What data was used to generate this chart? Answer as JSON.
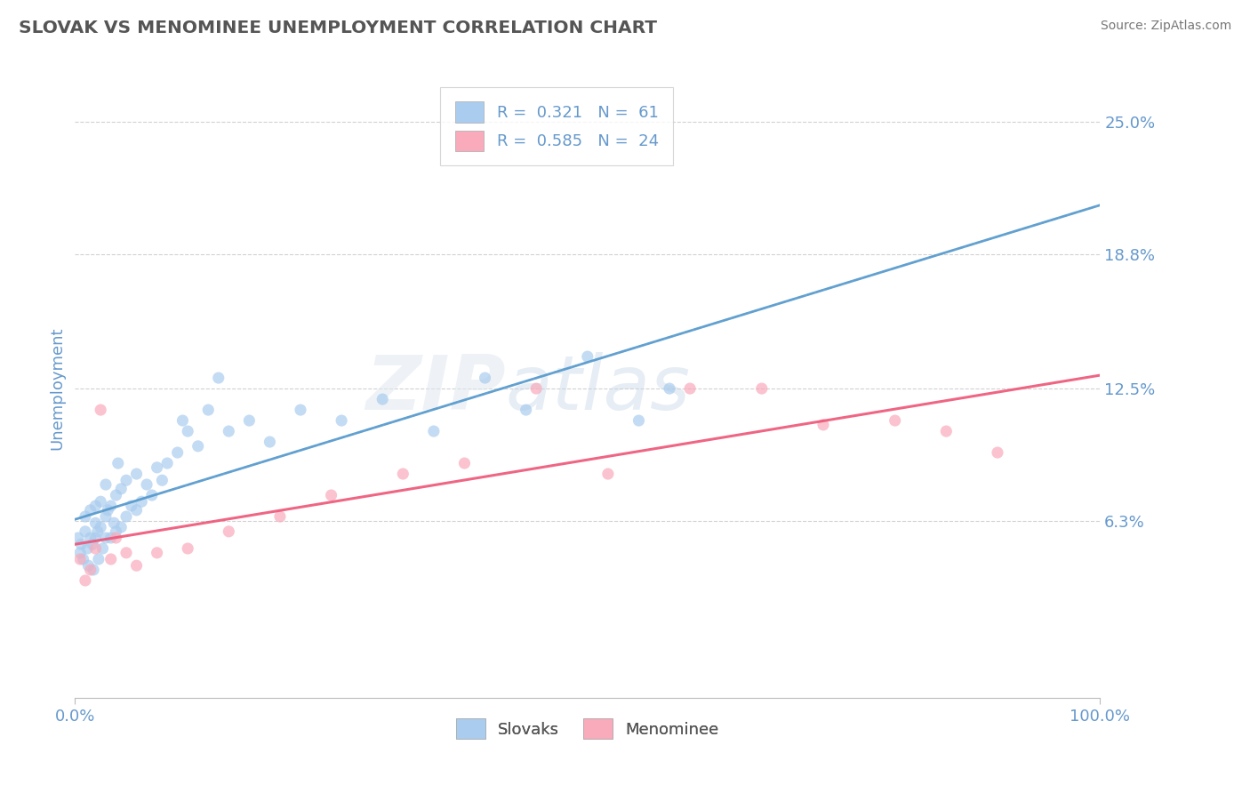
{
  "title": "SLOVAK VS MENOMINEE UNEMPLOYMENT CORRELATION CHART",
  "source_text": "Source: ZipAtlas.com",
  "ylabel": "Unemployment",
  "watermark": "ZIPatlas",
  "xlim": [
    0,
    100
  ],
  "ylim": [
    -2,
    27
  ],
  "plot_ylim": [
    -2,
    27
  ],
  "ytick_vals": [
    6.3,
    12.5,
    18.8,
    25.0
  ],
  "ytick_labels": [
    "6.3%",
    "12.5%",
    "18.8%",
    "25.0%"
  ],
  "xtick_labels": [
    "0.0%",
    "100.0%"
  ],
  "background_color": "#ffffff",
  "grid_color": "#cccccc",
  "title_color": "#555555",
  "tick_color": "#6699cc",
  "source_color": "#777777",
  "slovaks_dot_color": "#aaccee",
  "slovaks_line_color": "#5599cc",
  "menominee_dot_color": "#f9aabb",
  "menominee_line_color": "#ee5577",
  "slovaks_label": "Slovaks",
  "menominee_label": "Menominee",
  "legend_R1": "R = 0.321",
  "legend_N1": "N =  61",
  "legend_R2": "R = 0.585",
  "legend_N2": "N =  24",
  "slovaks_x": [
    0.3,
    0.5,
    0.6,
    0.8,
    1.0,
    1.0,
    1.2,
    1.3,
    1.5,
    1.5,
    1.7,
    1.8,
    2.0,
    2.0,
    2.0,
    2.2,
    2.3,
    2.5,
    2.5,
    2.7,
    3.0,
    3.0,
    3.0,
    3.2,
    3.5,
    3.5,
    3.8,
    4.0,
    4.0,
    4.2,
    4.5,
    4.5,
    5.0,
    5.0,
    5.5,
    6.0,
    6.0,
    6.5,
    7.0,
    7.5,
    8.0,
    8.5,
    9.0,
    10.0,
    10.5,
    11.0,
    12.0,
    13.0,
    14.0,
    15.0,
    17.0,
    19.0,
    22.0,
    26.0,
    30.0,
    35.0,
    40.0,
    44.0,
    50.0,
    55.0,
    58.0
  ],
  "slovaks_y": [
    5.5,
    4.8,
    5.2,
    4.5,
    5.8,
    6.5,
    5.0,
    4.2,
    5.5,
    6.8,
    5.2,
    4.0,
    5.5,
    6.2,
    7.0,
    5.8,
    4.5,
    6.0,
    7.2,
    5.0,
    5.5,
    6.5,
    8.0,
    6.8,
    5.5,
    7.0,
    6.2,
    5.8,
    7.5,
    9.0,
    6.0,
    7.8,
    6.5,
    8.2,
    7.0,
    6.8,
    8.5,
    7.2,
    8.0,
    7.5,
    8.8,
    8.2,
    9.0,
    9.5,
    11.0,
    10.5,
    9.8,
    11.5,
    13.0,
    10.5,
    11.0,
    10.0,
    11.5,
    11.0,
    12.0,
    10.5,
    13.0,
    11.5,
    14.0,
    11.0,
    12.5
  ],
  "menominee_x": [
    0.5,
    1.0,
    1.5,
    2.0,
    2.5,
    3.5,
    4.0,
    5.0,
    6.0,
    8.0,
    11.0,
    15.0,
    20.0,
    25.0,
    32.0,
    38.0,
    45.0,
    52.0,
    60.0,
    67.0,
    73.0,
    80.0,
    85.0,
    90.0
  ],
  "menominee_y": [
    4.5,
    3.5,
    4.0,
    5.0,
    11.5,
    4.5,
    5.5,
    4.8,
    4.2,
    4.8,
    5.0,
    5.8,
    6.5,
    7.5,
    8.5,
    9.0,
    12.5,
    8.5,
    12.5,
    12.5,
    10.8,
    11.0,
    10.5,
    9.5
  ]
}
